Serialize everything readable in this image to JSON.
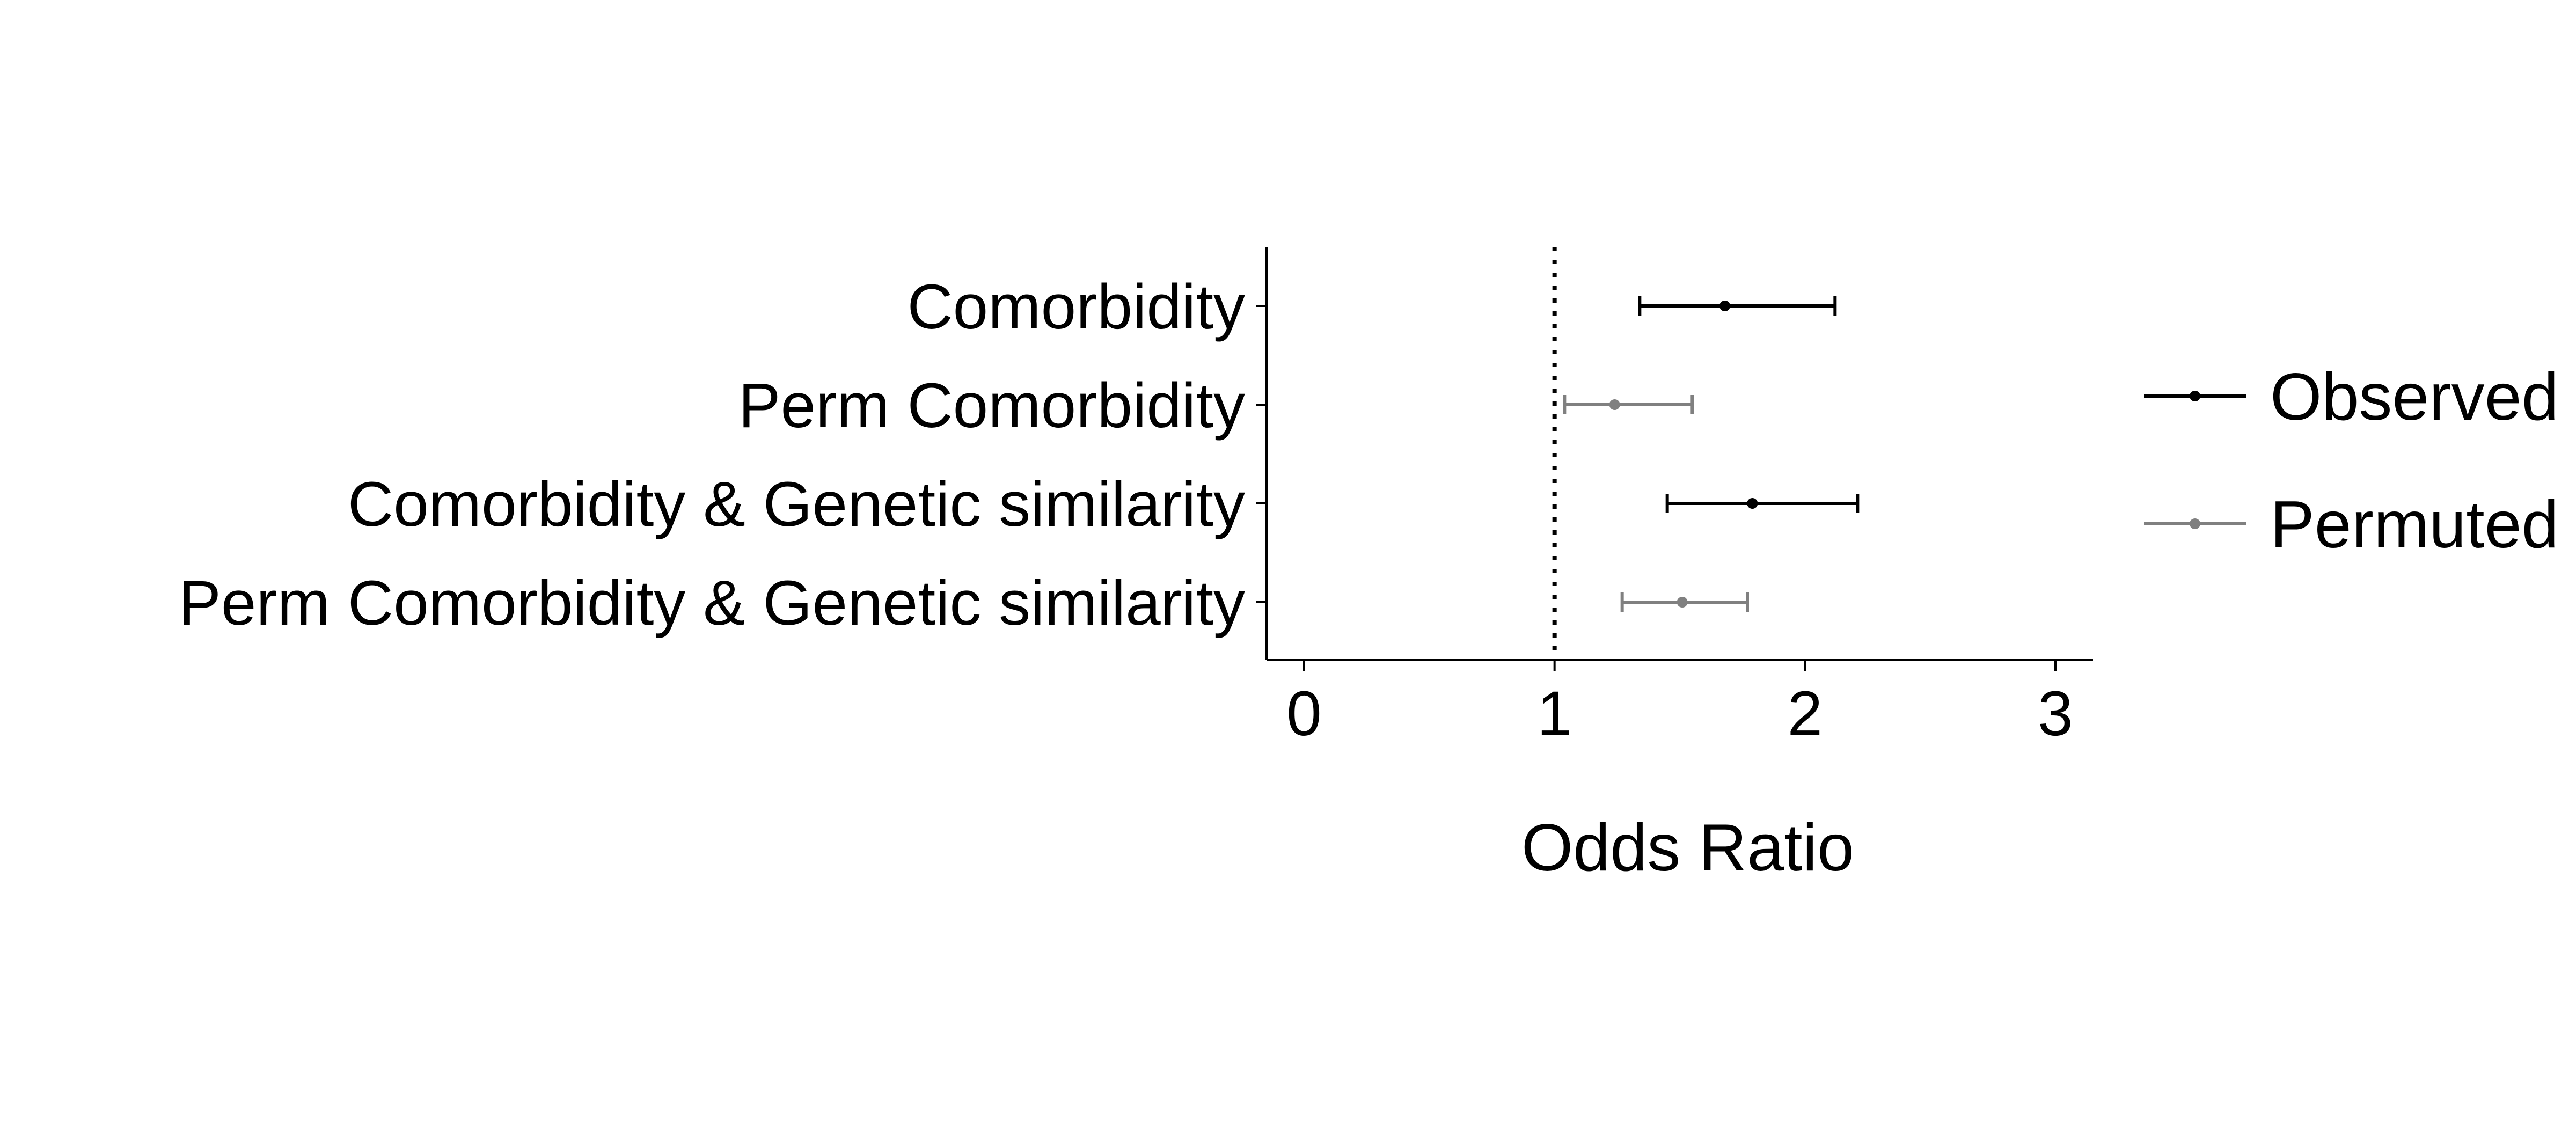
{
  "chart_data": {
    "type": "forest",
    "title": "",
    "xlabel": "Odds Ratio",
    "ylabel": "",
    "xlim": [
      -0.15,
      3.15
    ],
    "xticks": [
      0,
      1,
      2,
      3
    ],
    "reference_line": {
      "x": 1,
      "style": "dotted"
    },
    "grid": false,
    "legend": {
      "position": "right",
      "entries": [
        {
          "name": "Observed",
          "color": "#000000"
        },
        {
          "name": "Permuted",
          "color": "#808080"
        }
      ]
    },
    "rows": [
      {
        "label": "Comorbidity",
        "group": "Observed",
        "estimate": 1.68,
        "lower": 1.34,
        "upper": 2.12
      },
      {
        "label": "Perm Comorbidity",
        "group": "Permuted",
        "estimate": 1.24,
        "lower": 1.04,
        "upper": 1.55
      },
      {
        "label": "Comorbidity & Genetic similarity",
        "group": "Observed",
        "estimate": 1.79,
        "lower": 1.45,
        "upper": 2.21
      },
      {
        "label": "Perm Comorbidity & Genetic similarity",
        "group": "Permuted",
        "estimate": 1.51,
        "lower": 1.27,
        "upper": 1.77
      }
    ]
  }
}
